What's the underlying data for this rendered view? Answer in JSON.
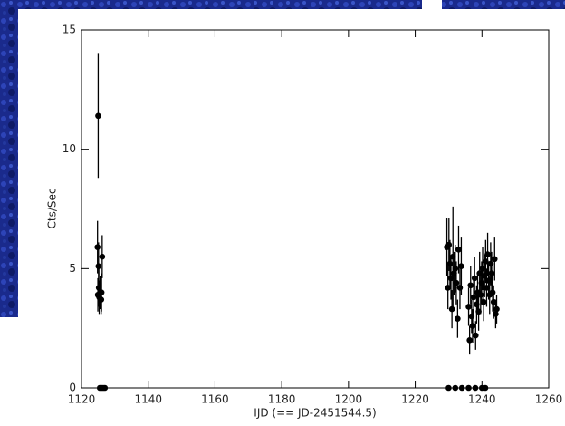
{
  "chart_data": {
    "type": "scatter",
    "x_label": "IJD (== JD-2451544.5)",
    "y_label": "Cts/Sec",
    "xlim": [
      1120,
      1260
    ],
    "ylim": [
      0,
      15
    ],
    "xticks": [
      1120,
      1140,
      1160,
      1180,
      1200,
      1220,
      1240,
      1260
    ],
    "yticks": [
      0,
      5,
      10,
      15
    ],
    "color": "#000000",
    "series": [
      {
        "x": [
          1125.0,
          1124.8,
          1125.1,
          1125.2,
          1124.9,
          1125.3,
          1125.6,
          1125.9,
          1126.2,
          1126.0,
          1229.5,
          1229.8,
          1230.1,
          1230.4,
          1230.7,
          1231.0,
          1231.3,
          1231.6,
          1232.0,
          1232.3,
          1232.7,
          1233.0,
          1233.4,
          1233.8,
          1236.0,
          1236.3,
          1236.6,
          1236.9,
          1237.2,
          1237.5,
          1237.8,
          1238.1,
          1238.4,
          1238.7,
          1239.0,
          1239.3,
          1239.6,
          1239.9,
          1240.2,
          1240.5,
          1240.8,
          1241.1,
          1241.4,
          1241.7,
          1242.0,
          1242.3,
          1242.6,
          1242.9,
          1243.2,
          1243.5,
          1243.8,
          1244.1,
          1244.4,
          1125.5,
          1126.0,
          1126.5,
          1127.0,
          1230.0,
          1232.0,
          1234.0,
          1236.0,
          1238.0,
          1240.0,
          1241.0
        ],
        "values": [
          11.4,
          5.9,
          5.1,
          4.2,
          3.9,
          3.8,
          4.0,
          3.7,
          5.5,
          4.0,
          5.9,
          4.2,
          6.0,
          5.2,
          4.6,
          3.3,
          5.5,
          4.8,
          5.0,
          4.4,
          2.9,
          5.8,
          4.2,
          5.1,
          3.4,
          2.0,
          4.3,
          3.0,
          2.6,
          3.8,
          4.6,
          2.2,
          3.5,
          4.0,
          3.2,
          4.8,
          3.9,
          4.4,
          5.0,
          3.6,
          4.7,
          5.3,
          4.2,
          5.6,
          4.5,
          3.9,
          5.2,
          4.8,
          4.0,
          3.6,
          5.4,
          3.1,
          3.3,
          0,
          0,
          0,
          0,
          0,
          0,
          0,
          0,
          0,
          0,
          0
        ],
        "errors": [
          2.6,
          1.1,
          1.0,
          0.8,
          0.7,
          0.7,
          0.7,
          0.6,
          0.9,
          0.8,
          1.2,
          0.9,
          1.1,
          1.0,
          0.9,
          0.8,
          2.1,
          0.9,
          1.0,
          0.9,
          0.8,
          1.0,
          0.9,
          1.2,
          0.8,
          0.6,
          0.8,
          0.7,
          0.7,
          0.8,
          0.9,
          0.6,
          0.8,
          0.8,
          0.8,
          0.9,
          0.8,
          0.9,
          0.9,
          0.8,
          0.9,
          0.9,
          0.8,
          0.9,
          0.8,
          0.8,
          0.9,
          0.9,
          0.8,
          0.7,
          0.9,
          0.6,
          0.6,
          0,
          0,
          0,
          0,
          0,
          0,
          0,
          0,
          0,
          0,
          0
        ]
      }
    ]
  }
}
